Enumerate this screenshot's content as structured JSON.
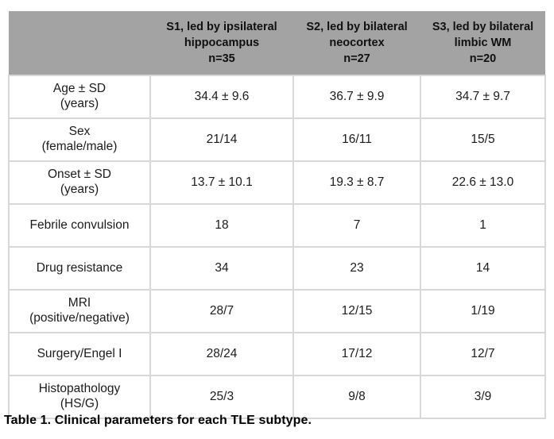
{
  "table": {
    "caption": "Table 1. Clinical parameters for each TLE subtype.",
    "colors": {
      "header_background": "#a3a3a3",
      "cell_border": "#d8d8d8",
      "text": "#1b1b1b"
    },
    "columns": [
      {
        "label": ""
      },
      {
        "label": "S1, led by ipsilateral\nhippocampus\nn=35"
      },
      {
        "label": "S2, led by bilateral\nneocortex\nn=27"
      },
      {
        "label": "S3, led by bilateral\nlimbic WM\nn=20"
      }
    ],
    "rows": [
      {
        "label": "Age ± SD\n(years)",
        "values": [
          "34.4 ± 9.6",
          "36.7 ± 9.9",
          "34.7 ± 9.7"
        ]
      },
      {
        "label": "Sex\n(female/male)",
        "values": [
          "21/14",
          "16/11",
          "15/5"
        ]
      },
      {
        "label": "Onset ± SD\n(years)",
        "values": [
          "13.7 ± 10.1",
          "19.3 ± 8.7",
          "22.6 ± 13.0"
        ]
      },
      {
        "label": "Febrile convulsion",
        "values": [
          "18",
          "7",
          "1"
        ]
      },
      {
        "label": "Drug resistance",
        "values": [
          "34",
          "23",
          "14"
        ]
      },
      {
        "label": "MRI\n(positive/negative)",
        "values": [
          "28/7",
          "12/15",
          "1/19"
        ]
      },
      {
        "label": "Surgery/Engel I",
        "values": [
          "28/24",
          "17/12",
          "12/7"
        ]
      },
      {
        "label": "Histopathology\n(HS/G)",
        "values": [
          "25/3",
          "9/8",
          "3/9"
        ]
      }
    ]
  }
}
